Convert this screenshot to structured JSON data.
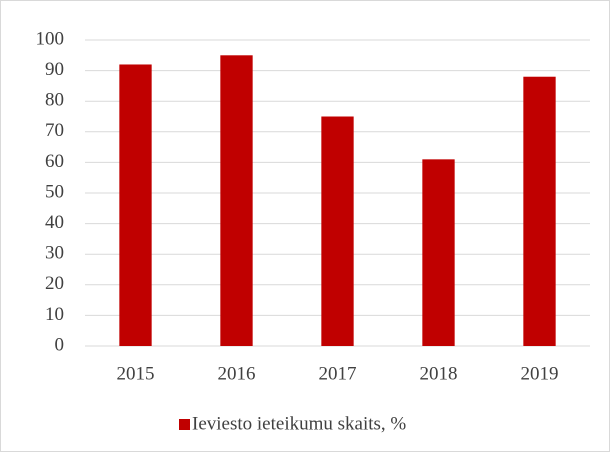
{
  "chart_data": {
    "type": "bar",
    "categories": [
      "2015",
      "2016",
      "2017",
      "2018",
      "2019"
    ],
    "series": [
      {
        "name": "Ieviesto ieteikumu skaits, %",
        "color": "#c00000",
        "values": [
          92,
          95,
          75,
          61,
          88
        ]
      }
    ],
    "ylim": [
      0,
      100
    ],
    "yticks": [
      0,
      10,
      20,
      30,
      40,
      50,
      60,
      70,
      80,
      90,
      100
    ],
    "grid": true,
    "legend": "bottom"
  }
}
